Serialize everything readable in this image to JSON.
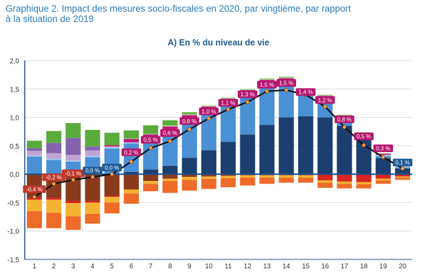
{
  "figure": {
    "title_line1": "Graphique 2. Impact des mesures socio-fiscales en 2020, par vingtième, par rapport",
    "title_line2": "à la situation de 2019",
    "subtitle": "A) En % du niveau de vie"
  },
  "chart_data": {
    "type": "bar",
    "stacked": true,
    "title": "Graphique 2. Impact des mesures socio-fiscales en 2020, par vingtième, par rapport à la situation de 2019",
    "subtitle": "A) En % du niveau de vie",
    "xlabel": "",
    "ylabel": "",
    "ylim": [
      -1.5,
      2.0
    ],
    "yticks": [
      -1.5,
      -1.0,
      -0.5,
      0.0,
      0.5,
      1.0,
      1.5,
      2.0
    ],
    "ytick_labels": [
      "-1,5",
      "-1,0",
      "-0,5",
      "0,0",
      "0,5",
      "1,0",
      "1,5",
      "2,0"
    ],
    "grid": true,
    "categories": [
      "1",
      "2",
      "3",
      "4",
      "5",
      "6",
      "7",
      "8",
      "9",
      "10",
      "11",
      "12",
      "13",
      "14",
      "15",
      "16",
      "17",
      "18",
      "19",
      "20"
    ],
    "series": [
      {
        "color": "#1b3f6e",
        "values": [
          0,
          0,
          0,
          0,
          0,
          0.04,
          0.08,
          0.15,
          0.29,
          0.42,
          0.57,
          0.7,
          0.87,
          1.0,
          1.02,
          1.0,
          0.85,
          0.62,
          0.28,
          0.1
        ]
      },
      {
        "color": "#4a90d4",
        "values": [
          0.31,
          0.25,
          0.22,
          0.3,
          0.45,
          0.5,
          0.52,
          0.6,
          0.67,
          0.7,
          0.69,
          0.7,
          0.7,
          0.6,
          0.37,
          0.3,
          0.12,
          0.05,
          0.04,
          0.02
        ]
      },
      {
        "color": "#9ed0ef",
        "values": [
          0.02,
          0.02,
          0.02,
          0.02,
          0.02,
          0.02,
          0.02,
          0.02,
          0.02,
          0.02,
          0.02,
          0.02,
          0.02,
          0.02,
          0.02,
          0.02,
          0.02,
          0.02,
          0.02,
          0.02
        ]
      },
      {
        "color": "#bfa3d2",
        "values": [
          0.08,
          0.1,
          0.1,
          0.1,
          0.02,
          0,
          0,
          0,
          0,
          0,
          0,
          0,
          0,
          0,
          0,
          0,
          0,
          0,
          0,
          0
        ]
      },
      {
        "color": "#8464ae",
        "values": [
          0.05,
          0.18,
          0.3,
          0.07,
          0,
          0,
          0,
          0,
          0,
          0,
          0,
          0,
          0,
          0,
          0,
          0,
          0,
          0,
          0,
          0
        ]
      },
      {
        "color": "#c0187c",
        "values": [
          0,
          0,
          0,
          0,
          0.02,
          0.06,
          0.08,
          0.07,
          0.06,
          0.05,
          0.05,
          0.06,
          0.07,
          0.07,
          0.07,
          0.06,
          0.04,
          0.03,
          0.02,
          0.01
        ]
      },
      {
        "color": "#a8d18d",
        "values": [
          0,
          0,
          0,
          0,
          0,
          0.01,
          0.01,
          0.02,
          0.02,
          0.02,
          0.02,
          0.02,
          0.03,
          0.03,
          0.03,
          0.02,
          0.02,
          0.02,
          0.01,
          0.01
        ]
      },
      {
        "color": "#5aab3c",
        "values": [
          0.13,
          0.21,
          0.26,
          0.29,
          0.22,
          0.14,
          0.15,
          0.09,
          0.03,
          0,
          0,
          0,
          0,
          0,
          0,
          0,
          0,
          0,
          0,
          0
        ]
      },
      {
        "color": "#8a3b1e",
        "values": [
          -0.42,
          -0.42,
          -0.47,
          -0.47,
          -0.38,
          -0.27,
          -0.12,
          -0.08,
          -0.05,
          -0.04,
          -0.03,
          -0.02,
          -0.02,
          -0.02,
          -0.02,
          -0.01,
          -0.01,
          -0.01,
          -0.01,
          -0.01
        ]
      },
      {
        "color": "#d8251f",
        "values": [
          -0.03,
          -0.03,
          -0.04,
          -0.03,
          -0.02,
          0,
          0,
          0,
          0,
          0,
          0,
          0,
          0,
          0,
          0,
          -0.1,
          -0.12,
          -0.13,
          -0.07,
          -0.03
        ]
      },
      {
        "color": "#f5b333",
        "values": [
          -0.2,
          -0.23,
          -0.23,
          -0.2,
          -0.1,
          -0.07,
          -0.05,
          -0.04,
          -0.05,
          -0.04,
          -0.04,
          -0.04,
          -0.04,
          -0.04,
          -0.04,
          -0.04,
          -0.04,
          -0.04,
          -0.03,
          -0.02
        ]
      },
      {
        "color": "#ee6b2a",
        "values": [
          -0.3,
          -0.27,
          -0.24,
          -0.17,
          -0.19,
          -0.18,
          -0.13,
          -0.21,
          -0.19,
          -0.18,
          -0.16,
          -0.14,
          -0.11,
          -0.09,
          -0.09,
          -0.09,
          -0.08,
          -0.07,
          -0.06,
          -0.04
        ]
      }
    ],
    "line": {
      "color": "#111111",
      "marker_color": "#f5a04a",
      "values": [
        -0.4,
        -0.17,
        -0.1,
        -0.05,
        0.0,
        0.22,
        0.46,
        0.58,
        0.79,
        0.98,
        1.14,
        1.27,
        1.46,
        1.48,
        1.4,
        1.19,
        0.83,
        0.51,
        0.3,
        0.1
      ]
    },
    "value_labels": [
      {
        "x": "1",
        "y": -0.27,
        "text": "-0,4 %"
      },
      {
        "x": "2",
        "y": -0.06,
        "text": "-0,2 %"
      },
      {
        "x": "3",
        "y": 0.01,
        "text": "-0,1 %"
      },
      {
        "x": "4",
        "y": 0.06,
        "text": "0,0 %"
      },
      {
        "x": "5",
        "y": 0.11,
        "text": "0,0 %"
      },
      {
        "x": "6",
        "y": 0.38,
        "text": "0,2 %"
      },
      {
        "x": "7",
        "y": 0.6,
        "text": "0,5 %"
      },
      {
        "x": "8",
        "y": 0.72,
        "text": "0,6 %"
      },
      {
        "x": "9",
        "y": 0.93,
        "text": "0,8 %"
      },
      {
        "x": "10",
        "y": 1.1,
        "text": "1,0 %"
      },
      {
        "x": "11",
        "y": 1.25,
        "text": "1,1 %"
      },
      {
        "x": "12",
        "y": 1.4,
        "text": "1,3 %"
      },
      {
        "x": "13",
        "y": 1.57,
        "text": "1,5 %"
      },
      {
        "x": "14",
        "y": 1.6,
        "text": "1,5 %"
      },
      {
        "x": "15",
        "y": 1.44,
        "text": "1,4 %"
      },
      {
        "x": "16",
        "y": 1.3,
        "text": "1,2 %"
      },
      {
        "x": "17",
        "y": 0.96,
        "text": "0,8 %"
      },
      {
        "x": "18",
        "y": 0.66,
        "text": "0,5 %"
      },
      {
        "x": "19",
        "y": 0.45,
        "text": "0,3 %"
      },
      {
        "x": "20",
        "y": 0.2,
        "text": "0,1 %"
      }
    ]
  }
}
